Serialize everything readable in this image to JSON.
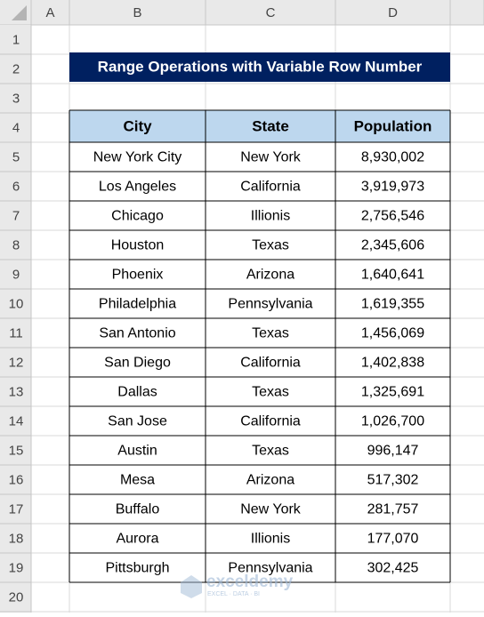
{
  "column_headers": [
    "A",
    "B",
    "C",
    "D"
  ],
  "row_headers": [
    1,
    2,
    3,
    4,
    5,
    6,
    7,
    8,
    9,
    10,
    11,
    12,
    13,
    14,
    15,
    16,
    17,
    18,
    19,
    20
  ],
  "title": "Range Operations with Variable Row Number",
  "table": {
    "header": [
      "City",
      "State",
      "Population"
    ],
    "rows": [
      [
        "New York City",
        "New York",
        "8,930,002"
      ],
      [
        "Los Angeles",
        "California",
        "3,919,973"
      ],
      [
        "Chicago",
        "Illionis",
        "2,756,546"
      ],
      [
        "Houston",
        "Texas",
        "2,345,606"
      ],
      [
        "Phoenix",
        "Arizona",
        "1,640,641"
      ],
      [
        "Philadelphia",
        "Pennsylvania",
        "1,619,355"
      ],
      [
        "San Antonio",
        "Texas",
        "1,456,069"
      ],
      [
        "San Diego",
        "California",
        "1,402,838"
      ],
      [
        "Dallas",
        "Texas",
        "1,325,691"
      ],
      [
        "San Jose",
        "California",
        "1,026,700"
      ],
      [
        "Austin",
        "Texas",
        "996,147"
      ],
      [
        "Mesa",
        "Arizona",
        "517,302"
      ],
      [
        "Buffalo",
        "New York",
        "281,757"
      ],
      [
        "Aurora",
        "Illionis",
        "177,070"
      ],
      [
        "Pittsburgh",
        "Pennsylvania",
        "302,425"
      ]
    ]
  },
  "watermark": {
    "brand": "exceldemy",
    "tagline": "EXCEL · DATA · BI"
  }
}
